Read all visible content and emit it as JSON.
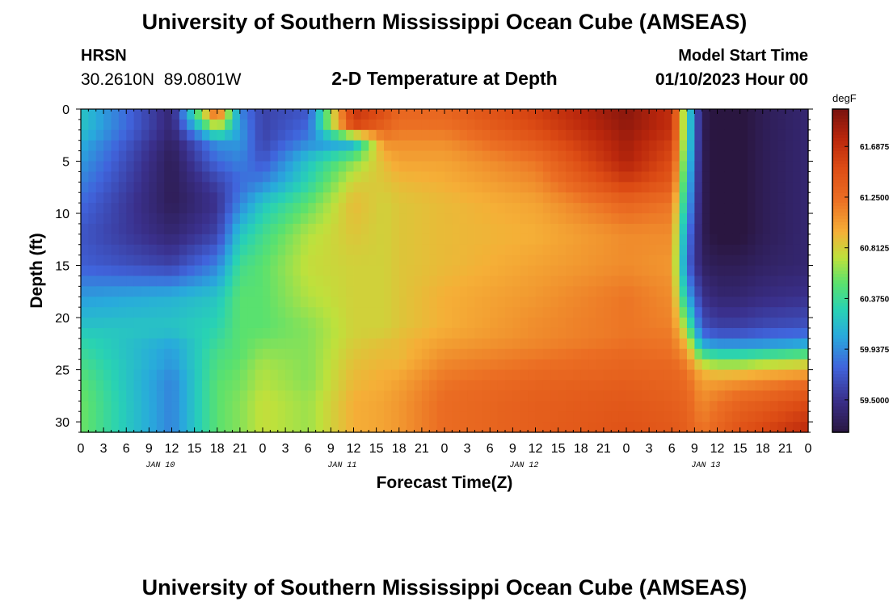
{
  "chart_data": {
    "type": "heatmap",
    "title": "University of Southern Mississippi Ocean Cube (AMSEAS)",
    "footer_title": "University of Southern Mississippi Ocean Cube (AMSEAS)",
    "station": "HRSN",
    "location": "30.2610N  89.0801W",
    "subtitle": "2-D Temperature at Depth",
    "model_start_label": "Model Start Time",
    "model_start": "01/10/2023 Hour 00",
    "xlabel": "Forecast Time(Z)",
    "ylabel": "Depth (ft)",
    "x_tick_labels": [
      "0",
      "3",
      "6",
      "9",
      "12",
      "15",
      "18",
      "21",
      "0",
      "3",
      "6",
      "9",
      "12",
      "15",
      "18",
      "21",
      "0",
      "3",
      "6",
      "9",
      "12",
      "15",
      "18",
      "21",
      "0",
      "3",
      "6",
      "9",
      "12",
      "15",
      "18",
      "21",
      "0"
    ],
    "day_labels": [
      "JAN 10",
      "JAN 11",
      "JAN 12",
      "JAN 13"
    ],
    "y_ticks": [
      0,
      5,
      10,
      15,
      20,
      25,
      30
    ],
    "xlim": [
      0,
      96
    ],
    "ylim": [
      0,
      31
    ],
    "colorbar": {
      "unit": "degF",
      "labels": [
        "61.6875",
        "61.2500",
        "60.8125",
        "60.3750",
        "59.9375",
        "59.5000"
      ],
      "ticks": [
        61.6875,
        61.25,
        60.8125,
        60.375,
        59.9375,
        59.5
      ],
      "range": [
        59.22,
        62.01
      ]
    },
    "x_hours": [
      0,
      12,
      18,
      21,
      24,
      30,
      36,
      40,
      42,
      48,
      60,
      72,
      78,
      80,
      82,
      84,
      87,
      90,
      96
    ],
    "depths_ft": [
      0,
      2,
      3,
      5,
      7,
      9,
      12,
      15,
      18,
      21,
      22,
      23,
      24,
      25,
      26,
      28,
      31
    ],
    "temperature_degF": [
      [
        60.2,
        59.4,
        61.5,
        59.9,
        59.6,
        59.7,
        61.7,
        61.5,
        61.3,
        61.3,
        61.6,
        61.95,
        61.7,
        60.4,
        59.3,
        59.2,
        59.2,
        59.3,
        59.4
      ],
      [
        60.2,
        59.4,
        60.6,
        60.0,
        59.6,
        59.8,
        61.5,
        61.3,
        61.2,
        61.2,
        61.5,
        61.9,
        61.7,
        60.4,
        59.3,
        59.2,
        59.2,
        59.3,
        59.4
      ],
      [
        60.1,
        59.35,
        60.0,
        60.0,
        59.6,
        59.9,
        60.0,
        61.1,
        61.1,
        61.1,
        61.4,
        61.85,
        61.6,
        60.4,
        59.3,
        59.2,
        59.2,
        59.3,
        59.4
      ],
      [
        60.0,
        59.3,
        59.8,
        59.9,
        59.7,
        60.2,
        60.6,
        60.9,
        61.0,
        61.0,
        61.2,
        61.8,
        61.5,
        60.3,
        59.3,
        59.2,
        59.2,
        59.3,
        59.4
      ],
      [
        59.9,
        59.3,
        59.6,
        59.8,
        59.9,
        60.3,
        60.8,
        60.85,
        60.9,
        60.95,
        61.1,
        61.6,
        61.4,
        60.2,
        59.3,
        59.2,
        59.2,
        59.3,
        59.4
      ],
      [
        59.8,
        59.3,
        59.5,
        59.9,
        60.2,
        60.5,
        60.9,
        60.8,
        60.85,
        60.9,
        61.0,
        61.3,
        61.2,
        60.1,
        59.3,
        59.2,
        59.2,
        59.3,
        59.4
      ],
      [
        59.7,
        59.4,
        59.6,
        60.2,
        60.4,
        60.7,
        60.85,
        60.8,
        60.85,
        60.9,
        60.95,
        61.1,
        61.1,
        59.9,
        59.3,
        59.2,
        59.2,
        59.3,
        59.4
      ],
      [
        59.75,
        59.6,
        59.9,
        60.4,
        60.5,
        60.75,
        60.8,
        60.8,
        60.85,
        60.9,
        61.0,
        61.1,
        61.05,
        59.8,
        59.35,
        59.3,
        59.3,
        59.35,
        59.4
      ],
      [
        60.0,
        60.1,
        60.2,
        60.5,
        60.5,
        60.7,
        60.8,
        60.8,
        60.85,
        60.95,
        61.05,
        61.2,
        61.1,
        60.1,
        59.5,
        59.4,
        59.4,
        59.45,
        59.5
      ],
      [
        60.2,
        60.2,
        60.3,
        60.5,
        60.5,
        60.6,
        60.8,
        60.8,
        60.85,
        60.95,
        61.1,
        61.2,
        61.15,
        60.6,
        59.7,
        59.6,
        59.6,
        59.65,
        59.7
      ],
      [
        60.3,
        60.1,
        60.35,
        60.5,
        60.55,
        60.6,
        60.8,
        60.85,
        60.9,
        61.0,
        61.1,
        61.2,
        61.2,
        60.8,
        59.9,
        59.8,
        59.8,
        59.85,
        59.9
      ],
      [
        60.35,
        60.0,
        60.4,
        60.5,
        60.6,
        60.6,
        60.85,
        60.9,
        60.9,
        61.05,
        61.15,
        61.25,
        61.2,
        61.0,
        60.2,
        60.1,
        60.1,
        60.1,
        60.2
      ],
      [
        60.4,
        60.0,
        60.45,
        60.5,
        60.65,
        60.6,
        60.85,
        60.9,
        60.9,
        61.1,
        61.2,
        61.3,
        61.25,
        61.1,
        60.6,
        60.5,
        60.5,
        60.6,
        60.7
      ],
      [
        60.45,
        59.95,
        60.45,
        60.55,
        60.7,
        60.6,
        60.9,
        60.95,
        60.95,
        61.15,
        61.25,
        61.3,
        61.3,
        61.2,
        60.9,
        60.8,
        60.8,
        60.85,
        60.9
      ],
      [
        60.5,
        59.9,
        60.5,
        60.55,
        60.7,
        60.6,
        60.9,
        60.95,
        61.0,
        61.2,
        61.3,
        61.35,
        61.3,
        61.25,
        61.0,
        61.0,
        61.05,
        61.1,
        61.2
      ],
      [
        60.55,
        59.9,
        60.5,
        60.6,
        60.75,
        60.65,
        60.95,
        61.0,
        61.05,
        61.25,
        61.35,
        61.4,
        61.35,
        61.3,
        61.1,
        61.2,
        61.3,
        61.35,
        61.5
      ],
      [
        60.55,
        59.9,
        60.5,
        60.6,
        60.75,
        60.65,
        60.95,
        61.0,
        61.05,
        61.25,
        61.35,
        61.45,
        61.4,
        61.35,
        61.2,
        61.3,
        61.45,
        61.55,
        61.75
      ]
    ]
  }
}
